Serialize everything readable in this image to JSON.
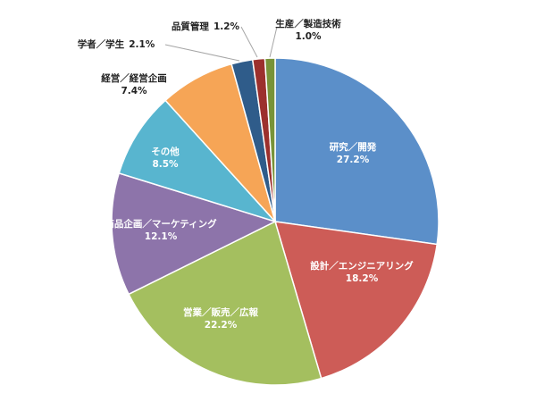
{
  "chart_data": {
    "type": "pie",
    "categories": [
      "研究／開発",
      "設計／エンジニアリング",
      "営業／販売／広報",
      "商品企画／マーケティング",
      "その他",
      "経営／経営企画",
      "学者／学生",
      "品質管理",
      "生産／製造技術"
    ],
    "values": [
      27.2,
      18.2,
      22.2,
      12.1,
      8.5,
      7.4,
      2.1,
      1.2,
      1.0
    ],
    "value_labels": [
      "27.2%",
      "18.2%",
      "22.2%",
      "12.1%",
      "8.5%",
      "7.4%",
      "2.1%",
      "1.2%",
      "1.0%"
    ],
    "colors": [
      "#5b8fc9",
      "#cd5c57",
      "#a4bf5f",
      "#8d74aa",
      "#58b5cf",
      "#f6a556",
      "#2f5c8a",
      "#9c302d",
      "#789338"
    ]
  }
}
